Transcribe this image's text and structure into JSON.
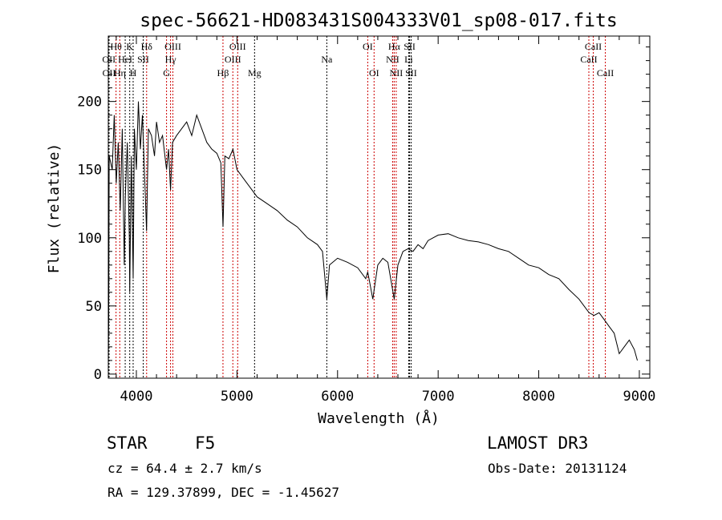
{
  "chart_data": {
    "type": "line",
    "title": "spec-56621-HD083431S004333V01_sp08-017.fits",
    "xlabel": "Wavelength (Å)",
    "ylabel": "Flux (relative)",
    "xlim": [
      3721,
      9104
    ],
    "ylim": [
      -3,
      248
    ],
    "xticks": [
      4000,
      5000,
      6000,
      7000,
      8000,
      9000
    ],
    "yticks": [
      0,
      50,
      100,
      150,
      200
    ],
    "xtick_labels": [
      "4000",
      "5000",
      "6000",
      "7000",
      "8000",
      "9000"
    ],
    "ytick_labels": [
      "0",
      "50",
      "100",
      "150",
      "200"
    ],
    "grid": false,
    "series": [
      {
        "name": "spectrum",
        "x": [
          3721,
          3725,
          3730,
          3760,
          3780,
          3800,
          3820,
          3840,
          3860,
          3880,
          3890,
          3910,
          3930,
          3934,
          3950,
          3968,
          3980,
          4000,
          4020,
          4040,
          4060,
          4080,
          4101,
          4120,
          4150,
          4180,
          4200,
          4230,
          4260,
          4300,
          4320,
          4340,
          4360,
          4400,
          4450,
          4500,
          4550,
          4600,
          4650,
          4700,
          4750,
          4800,
          4840,
          4861,
          4880,
          4920,
          4960,
          5000,
          5050,
          5100,
          5150,
          5200,
          5300,
          5400,
          5500,
          5600,
          5700,
          5800,
          5850,
          5893,
          5920,
          6000,
          6100,
          6200,
          6280,
          6300,
          6350,
          6400,
          6450,
          6500,
          6563,
          6600,
          6650,
          6700,
          6750,
          6800,
          6850,
          6900,
          7000,
          7100,
          7200,
          7300,
          7400,
          7500,
          7600,
          7700,
          7800,
          7900,
          8000,
          8100,
          8200,
          8300,
          8400,
          8500,
          8550,
          8600,
          8650,
          8700,
          8750,
          8800,
          8850,
          8900,
          8950,
          8980
        ],
        "y": [
          5,
          40,
          160,
          150,
          190,
          140,
          170,
          120,
          180,
          80,
          130,
          170,
          100,
          60,
          160,
          70,
          180,
          150,
          200,
          165,
          190,
          150,
          105,
          180,
          175,
          160,
          185,
          170,
          175,
          150,
          165,
          135,
          170,
          175,
          180,
          185,
          175,
          190,
          180,
          170,
          165,
          162,
          155,
          108,
          160,
          158,
          165,
          150,
          145,
          140,
          135,
          130,
          125,
          120,
          113,
          108,
          100,
          95,
          90,
          55,
          80,
          85,
          82,
          78,
          70,
          75,
          55,
          80,
          85,
          82,
          55,
          80,
          90,
          92,
          90,
          95,
          92,
          98,
          102,
          103,
          100,
          98,
          97,
          95,
          92,
          90,
          85,
          80,
          78,
          73,
          70,
          62,
          55,
          45,
          43,
          45,
          40,
          35,
          30,
          15,
          20,
          25,
          18,
          10
        ]
      }
    ],
    "lines": [
      {
        "label": "OII",
        "wl": 3727,
        "row": 2,
        "color": "#000000"
      },
      {
        "label": "OII",
        "wl": 3729,
        "row": 3,
        "color": "#000000"
      },
      {
        "label": "Hθ",
        "wl": 3798,
        "row": 1,
        "color": "#cc0000"
      },
      {
        "label": "Hη",
        "wl": 3835,
        "row": 3,
        "color": "#cc0000"
      },
      {
        "label": "HeI",
        "wl": 3889,
        "row": 2,
        "color": "#000000"
      },
      {
        "label": "K",
        "wl": 3934,
        "row": 1,
        "color": "#000000"
      },
      {
        "label": "H",
        "wl": 3968,
        "row": 3,
        "color": "#000000"
      },
      {
        "label": "SII",
        "wl": 4068,
        "row": 2,
        "color": "#000000"
      },
      {
        "label": "Hδ",
        "wl": 4102,
        "row": 1,
        "color": "#cc0000"
      },
      {
        "label": "G",
        "wl": 4300,
        "row": 3,
        "color": "#cc0000"
      },
      {
        "label": "Hγ",
        "wl": 4340,
        "row": 2,
        "color": "#cc0000"
      },
      {
        "label": "OIII",
        "wl": 4363,
        "row": 1,
        "color": "#cc0000"
      },
      {
        "label": "Hβ",
        "wl": 4861,
        "row": 3,
        "color": "#cc0000"
      },
      {
        "label": "OIII",
        "wl": 4959,
        "row": 2,
        "color": "#cc0000"
      },
      {
        "label": "OIII",
        "wl": 5007,
        "row": 1,
        "color": "#cc0000"
      },
      {
        "label": "Mg",
        "wl": 5175,
        "row": 3,
        "color": "#000000"
      },
      {
        "label": "Na",
        "wl": 5893,
        "row": 2,
        "color": "#000000"
      },
      {
        "label": "OI",
        "wl": 6300,
        "row": 1,
        "color": "#cc0000"
      },
      {
        "label": "OI",
        "wl": 6363,
        "row": 3,
        "color": "#cc0000"
      },
      {
        "label": "NII",
        "wl": 6548,
        "row": 2,
        "color": "#cc0000"
      },
      {
        "label": "Hα",
        "wl": 6563,
        "row": 1,
        "color": "#cc0000"
      },
      {
        "label": "NII",
        "wl": 6583,
        "row": 3,
        "color": "#cc0000"
      },
      {
        "label": "Li",
        "wl": 6707,
        "row": 2,
        "color": "#000000"
      },
      {
        "label": "SII",
        "wl": 6716,
        "row": 1,
        "color": "#000000"
      },
      {
        "label": "SII",
        "wl": 6731,
        "row": 3,
        "color": "#000000"
      },
      {
        "label": "CaII",
        "wl": 8498,
        "row": 2,
        "color": "#cc0000"
      },
      {
        "label": "CaII",
        "wl": 8542,
        "row": 1,
        "color": "#cc0000"
      },
      {
        "label": "CaII",
        "wl": 8662,
        "row": 3,
        "color": "#cc0000"
      }
    ]
  },
  "info": {
    "class": "STAR",
    "subclass": "F5",
    "survey": "LAMOST DR3",
    "cz": "cz = 64.4 ± 2.7 km/s",
    "obs_date": "Obs-Date: 20131124",
    "coords": "RA = 129.37899, DEC =  -1.45627"
  }
}
